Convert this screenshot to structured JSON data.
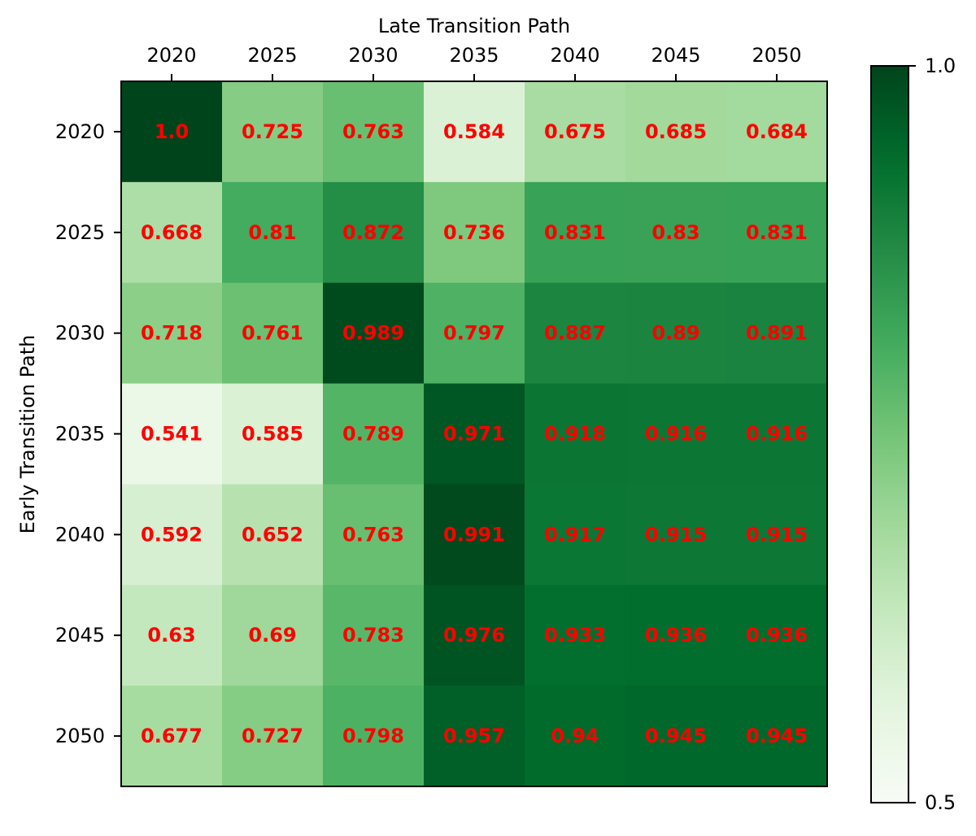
{
  "chart_data": {
    "type": "heatmap",
    "title": "",
    "xlabel": "Late Transition Path",
    "ylabel": "Early Transition Path",
    "x_categories": [
      "2020",
      "2025",
      "2030",
      "2035",
      "2040",
      "2045",
      "2050"
    ],
    "y_categories": [
      "2020",
      "2025",
      "2030",
      "2035",
      "2040",
      "2045",
      "2050"
    ],
    "values": [
      [
        1.0,
        0.725,
        0.763,
        0.584,
        0.675,
        0.685,
        0.684
      ],
      [
        0.668,
        0.81,
        0.872,
        0.736,
        0.831,
        0.83,
        0.831
      ],
      [
        0.718,
        0.761,
        0.989,
        0.797,
        0.887,
        0.89,
        0.891
      ],
      [
        0.541,
        0.585,
        0.789,
        0.971,
        0.918,
        0.916,
        0.916
      ],
      [
        0.592,
        0.652,
        0.763,
        0.991,
        0.917,
        0.915,
        0.915
      ],
      [
        0.63,
        0.69,
        0.783,
        0.976,
        0.933,
        0.936,
        0.936
      ],
      [
        0.677,
        0.727,
        0.798,
        0.957,
        0.94,
        0.945,
        0.945
      ]
    ],
    "value_labels": [
      [
        "1.0",
        "0.725",
        "0.763",
        "0.584",
        "0.675",
        "0.685",
        "0.684"
      ],
      [
        "0.668",
        "0.81",
        "0.872",
        "0.736",
        "0.831",
        "0.83",
        "0.831"
      ],
      [
        "0.718",
        "0.761",
        "0.989",
        "0.797",
        "0.887",
        "0.89",
        "0.891"
      ],
      [
        "0.541",
        "0.585",
        "0.789",
        "0.971",
        "0.918",
        "0.916",
        "0.916"
      ],
      [
        "0.592",
        "0.652",
        "0.763",
        "0.991",
        "0.917",
        "0.915",
        "0.915"
      ],
      [
        "0.63",
        "0.69",
        "0.783",
        "0.976",
        "0.933",
        "0.936",
        "0.936"
      ],
      [
        "0.677",
        "0.727",
        "0.798",
        "0.957",
        "0.94",
        "0.945",
        "0.945"
      ]
    ],
    "color_range": [
      0.5,
      1.0
    ],
    "colormap": "Greens",
    "colorbar": {
      "ticks": [
        0.5,
        1.0
      ],
      "tick_labels": [
        "0.5",
        "1.0"
      ]
    },
    "x_axis_position": "top",
    "annotation_color": "#ff0000",
    "grid": false
  }
}
